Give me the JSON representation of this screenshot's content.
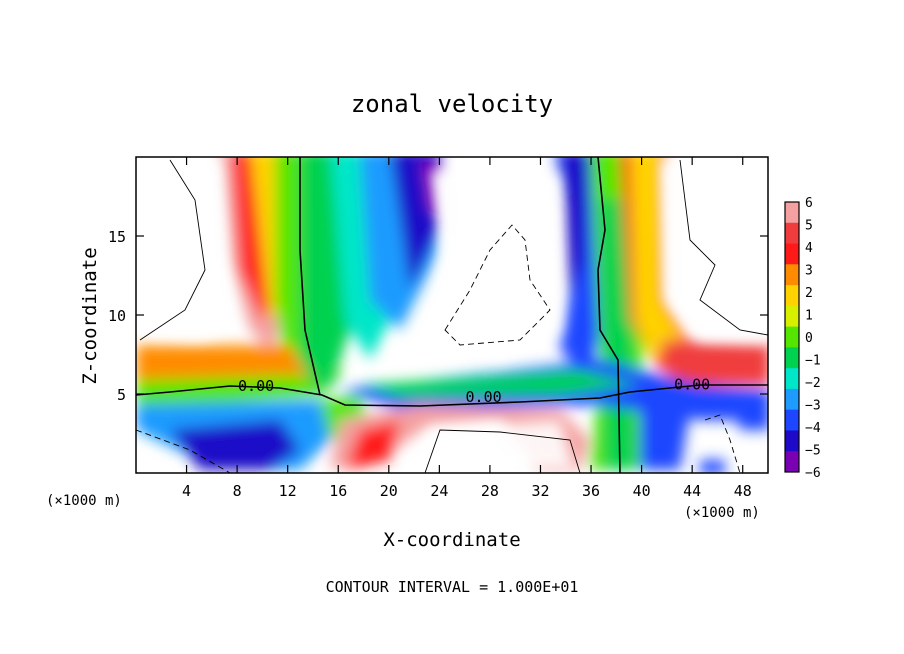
{
  "chart_data": {
    "type": "heatmap",
    "title": "zonal velocity",
    "xlabel": "X-coordinate",
    "ylabel": "Z-coordinate",
    "x_unit_left": "(×1000 m)",
    "x_unit_right": "(×1000 m)",
    "footer": "CONTOUR INTERVAL = 1.000E+01",
    "xlim": [
      0,
      50
    ],
    "ylim": [
      0,
      20
    ],
    "x_ticks": [
      4,
      8,
      12,
      16,
      20,
      24,
      28,
      32,
      36,
      40,
      44,
      48
    ],
    "y_ticks": [
      5,
      10,
      15
    ],
    "colorbar": {
      "levels": [
        6,
        5,
        4,
        3,
        2,
        1,
        0,
        -1,
        -2,
        -3,
        -4,
        -5,
        -6
      ],
      "labels": [
        "6",
        "5",
        "4",
        "3",
        "2",
        "1",
        "0",
        "−1",
        "−2",
        "−3",
        "−4",
        "−5",
        "−6"
      ],
      "colors": [
        "#f4a0a0",
        "#f03c3c",
        "#ff1a1a",
        "#ff8c00",
        "#ffd200",
        "#d7f000",
        "#55e600",
        "#00d250",
        "#00e6c8",
        "#1e9bff",
        "#1e46ff",
        "#1e0ac8",
        "#7a00b4"
      ]
    },
    "contour_labels": [
      {
        "text": "0.00",
        "x": 9.5,
        "z": 5.5
      },
      {
        "text": "0.00",
        "x": 27.5,
        "z": 4.8
      },
      {
        "text": "0.00",
        "x": 44.0,
        "z": 5.6
      }
    ]
  }
}
